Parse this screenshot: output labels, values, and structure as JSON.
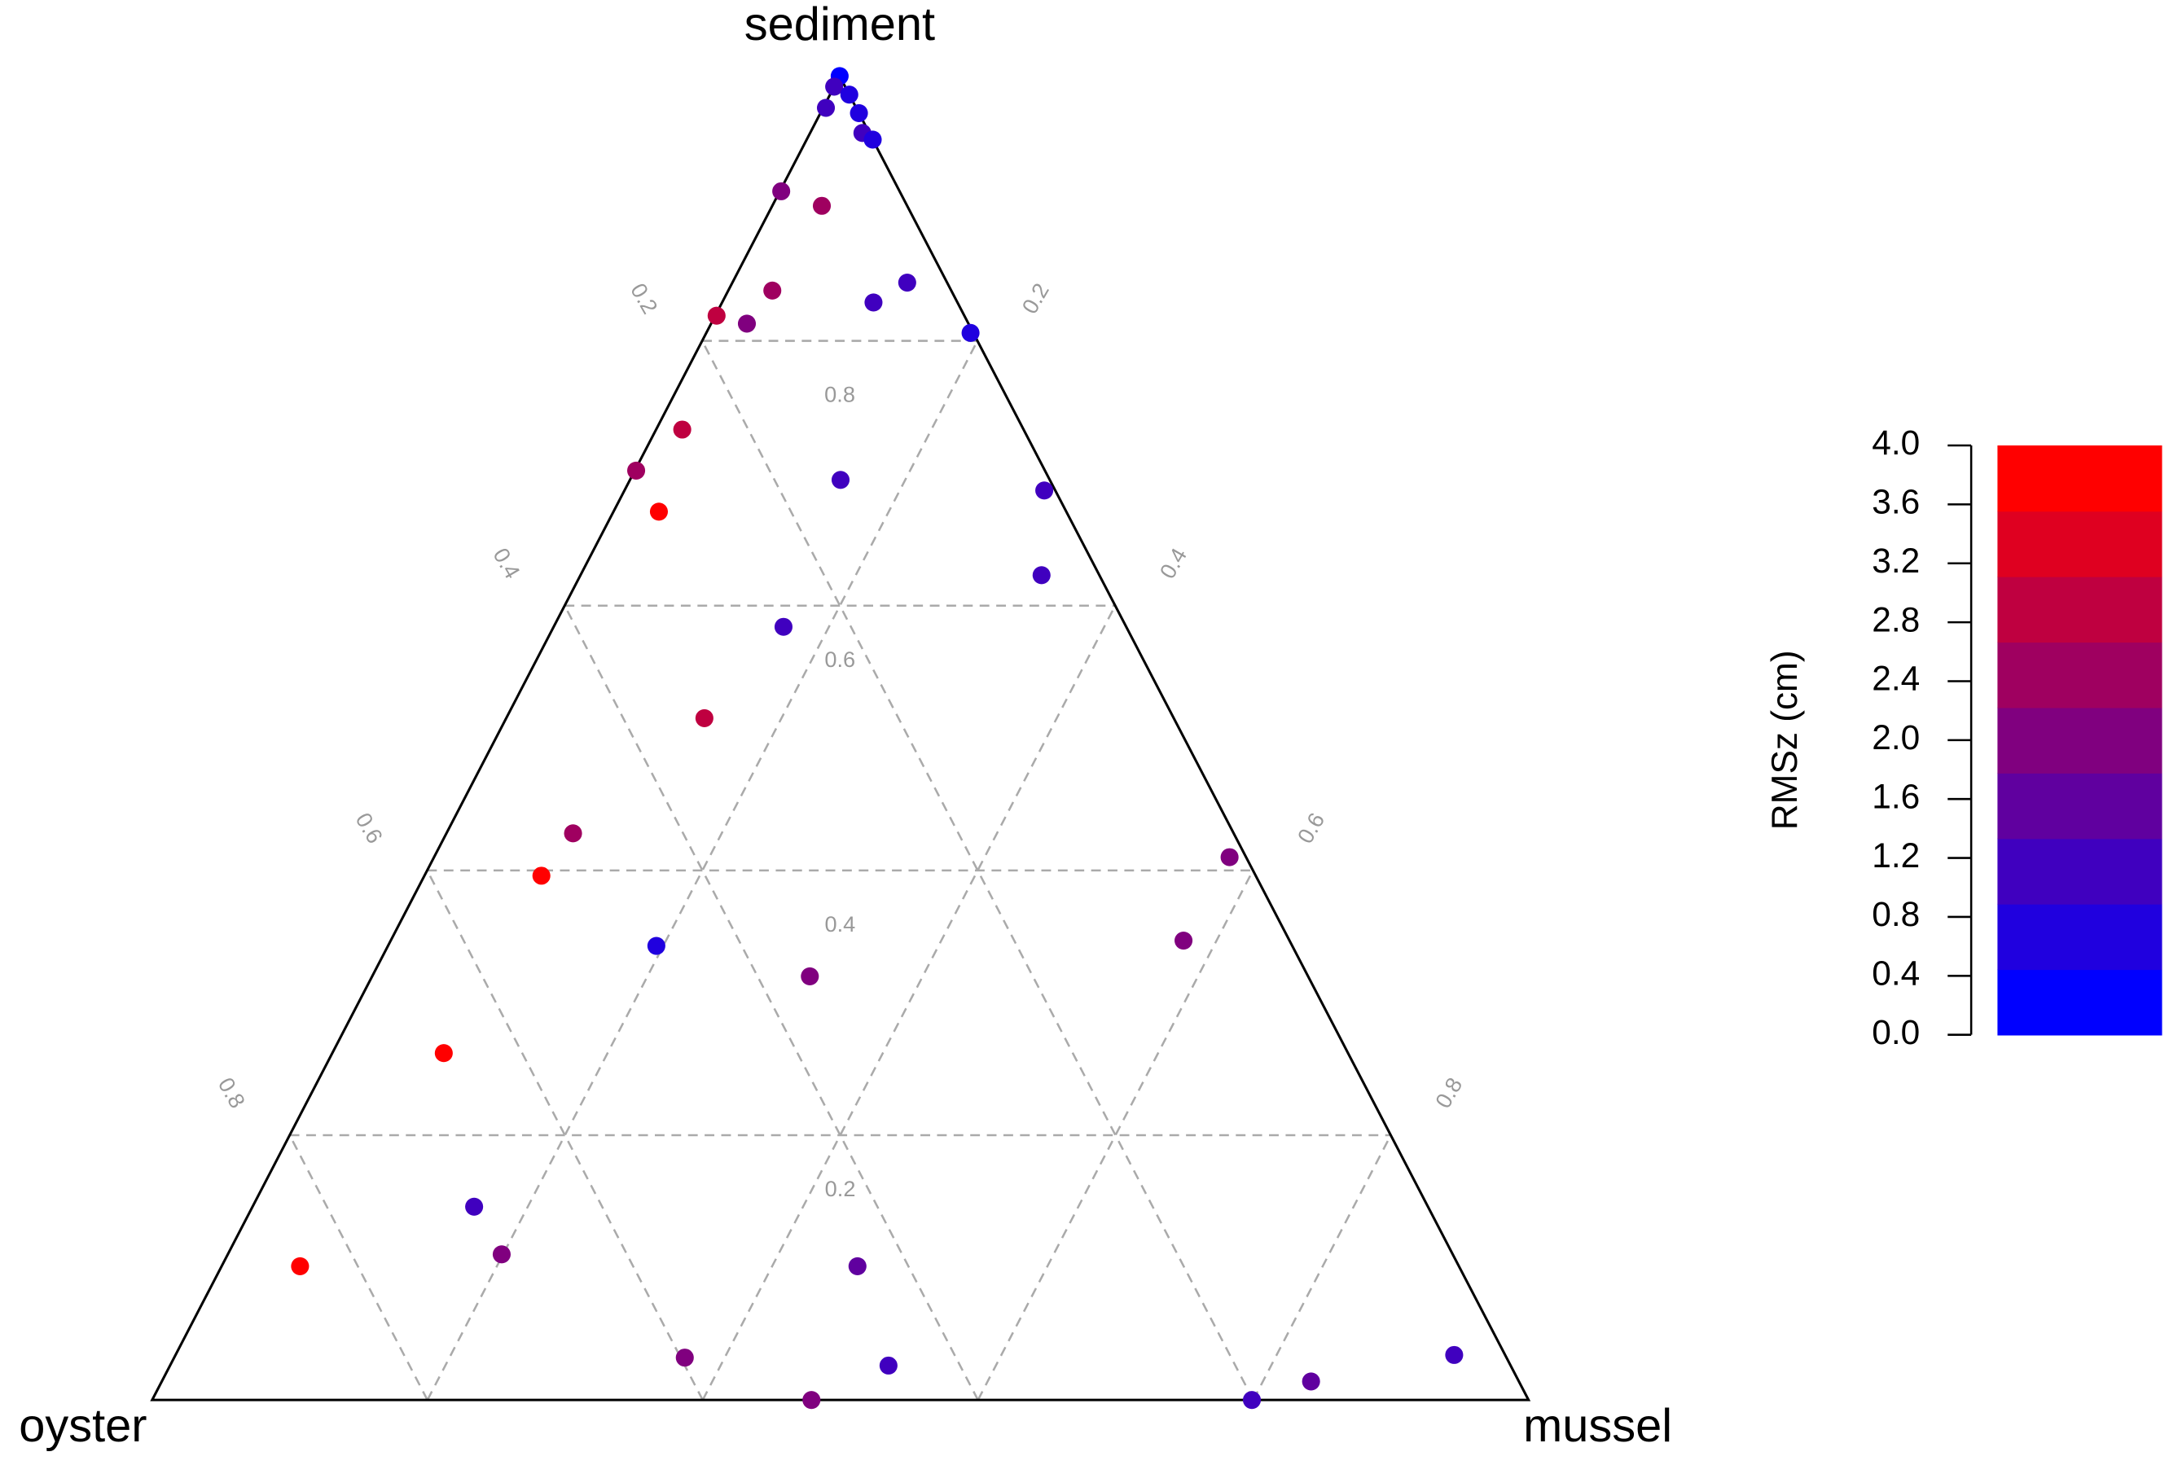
{
  "chart_data": {
    "type": "ternary",
    "sediment_label": "sediment",
    "oyster_label": "oyster",
    "mussel_label": "mussel",
    "sediment_ticks": [
      0.2,
      0.4,
      0.6,
      0.8
    ],
    "oyster_ticks": [
      0.2,
      0.4,
      0.6,
      0.8
    ],
    "mussel_ticks": [
      0.2,
      0.4,
      0.6,
      0.8
    ],
    "grid": true,
    "sediment": [
      1.0,
      0.992,
      0.986,
      0.976,
      0.972,
      0.957,
      0.952,
      0.913,
      0.902,
      0.838,
      0.829,
      0.844,
      0.819,
      0.813,
      0.806,
      0.733,
      0.702,
      0.671,
      0.695,
      0.687,
      0.623,
      0.584,
      0.515,
      0.428,
      0.396,
      0.41,
      0.343,
      0.32,
      0.347,
      0.262,
      0.146,
      0.11,
      0.101,
      0.101,
      0.032,
      0.026,
      0.0,
      0.0,
      0.014,
      0.034
    ],
    "oyster": [
      0.0,
      0.008,
      0.0,
      0.022,
      0.0,
      0.005,
      0.0,
      0.086,
      0.062,
      0.13,
      0.061,
      0.029,
      0.18,
      0.161,
      0.002,
      0.248,
      0.297,
      0.296,
      0.152,
      0.008,
      0.042,
      0.249,
      0.341,
      0.48,
      0.519,
      0.012,
      0.462,
      0.362,
      0.077,
      0.657,
      0.693,
      0.691,
      0.842,
      0.437,
      0.597,
      0.452,
      0.521,
      0.201,
      0.151,
      0.037
    ],
    "mussel": [
      0.0,
      0.0,
      0.014,
      0.002,
      0.028,
      0.038,
      0.048,
      0.001,
      0.036,
      0.032,
      0.11,
      0.127,
      0.001,
      0.026,
      0.192,
      0.019,
      0.001,
      0.033,
      0.153,
      0.305,
      0.335,
      0.167,
      0.144,
      0.092,
      0.085,
      0.578,
      0.195,
      0.318,
      0.576,
      0.081,
      0.161,
      0.199,
      0.057,
      0.462,
      0.371,
      0.522,
      0.479,
      0.799,
      0.835,
      0.929
    ],
    "values": [
      0.3,
      1.0,
      0.6,
      1.2,
      0.6,
      1.0,
      0.6,
      1.8,
      2.6,
      2.6,
      1.2,
      1.0,
      2.8,
      2.2,
      0.6,
      2.8,
      2.4,
      3.8,
      1.2,
      1.2,
      1.2,
      1.2,
      2.8,
      2.4,
      3.8,
      2.2,
      0.8,
      1.8,
      2.0,
      3.8,
      1.2,
      2.0,
      3.8,
      1.6,
      2.2,
      1.2,
      1.8,
      1.0,
      1.6,
      1.0
    ],
    "colorbar": {
      "label": "RMSz (cm)",
      "lim": [
        0,
        4
      ],
      "ticks": [
        {
          "value": 0,
          "label": "0.0"
        },
        0.4,
        0.8,
        1.2,
        1.6,
        {
          "value": 2,
          "label": "2.0"
        },
        2.4,
        2.8,
        3.2,
        3.6,
        {
          "value": 4,
          "label": "4.0"
        }
      ],
      "colors": [
        "#0000ff",
        "#2000df",
        "#4000bf",
        "#60009f",
        "#80007f",
        "#9f0060",
        "#bf0040",
        "#df0020",
        "#ff0000"
      ]
    }
  }
}
